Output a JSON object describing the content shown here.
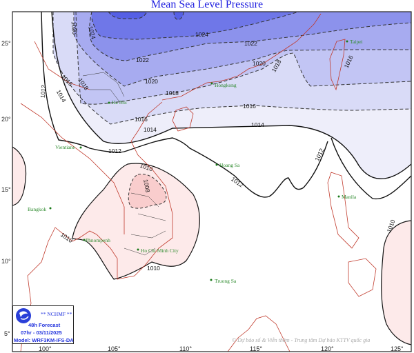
{
  "title": "Mean Sea Level Pressure",
  "map": {
    "longitude_ticks": [
      "100°",
      "105°",
      "110°",
      "115°",
      "120°",
      "125°"
    ],
    "latitude_ticks": [
      "25°",
      "20°",
      "15°",
      "10°",
      "5°"
    ],
    "contour_labels": [
      "1024",
      "1024",
      "1022",
      "1022",
      "1020",
      "1020",
      "1020",
      "1018",
      "1018",
      "1018",
      "1016",
      "1016",
      "1016",
      "1016",
      "1014",
      "1014",
      "1014",
      "1012",
      "1012",
      "1012",
      "1012",
      "1010",
      "1010",
      "1010",
      "1010",
      "1008"
    ],
    "low_pressure_color": "#fde6e6",
    "high_pressure_color": "#5660e5",
    "coastline_color": "#c0392b",
    "cities": [
      "Taipei",
      "Hongkong",
      "Ha Noi",
      "Vientiane",
      "Hoang Sa",
      "Bangkok",
      "Phnompenh",
      "Ho Chi Minh City",
      "Manila",
      "Truong Sa"
    ]
  },
  "legend": {
    "agency": "** NCHMF **",
    "forecast": "48h Forecast",
    "valid_time": "07hr - 03/11/2025",
    "model": "Model: WRF3KM-IFS-DA"
  },
  "copyright": "© Dự báo số & Viễn thám - Trung tâm Dự báo KTTV quốc gia"
}
